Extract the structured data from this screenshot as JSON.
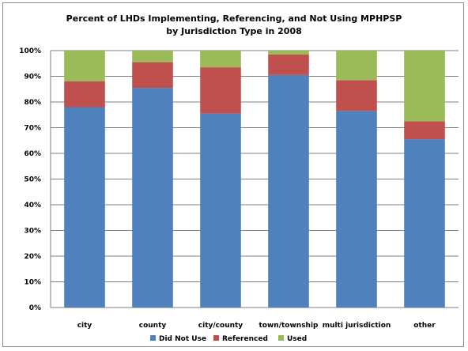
{
  "chart_data": {
    "type": "bar",
    "stacked": true,
    "title_line1": "Percent of LHDs Implementing, Referencing, and Not Using MPHPSP",
    "title_line2": "by Jurisdiction Type in 2008",
    "categories": [
      "city",
      "county",
      "city/county",
      "town/township",
      "multi jurisdiction",
      "other"
    ],
    "series": [
      {
        "name": "Did Not Use",
        "color": "#4f81bd",
        "values": [
          78,
          85.5,
          75.5,
          90.5,
          76.5,
          65.5
        ]
      },
      {
        "name": "Referenced",
        "color": "#c0504d",
        "values": [
          10,
          10,
          18,
          8,
          12,
          7
        ]
      },
      {
        "name": "Used",
        "color": "#9bbb59",
        "values": [
          12,
          4.5,
          6.5,
          1.5,
          11.5,
          27.5
        ]
      }
    ],
    "ylim": [
      0,
      100
    ],
    "yticks": [
      "0%",
      "10%",
      "20%",
      "30%",
      "40%",
      "50%",
      "60%",
      "70%",
      "80%",
      "90%",
      "100%"
    ],
    "grid": true,
    "legend_position": "bottom"
  }
}
